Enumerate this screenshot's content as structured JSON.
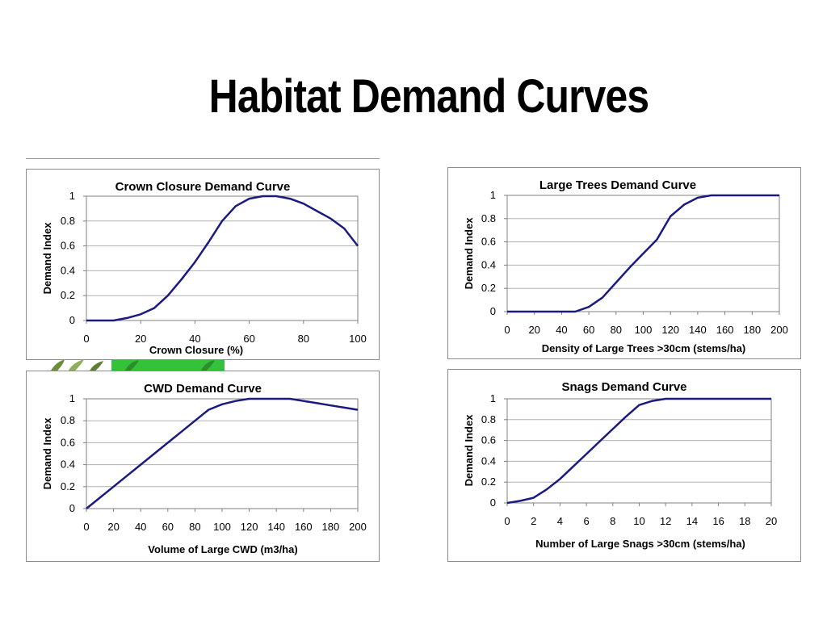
{
  "slide": {
    "title": "Habitat Demand Curves"
  },
  "colors": {
    "line": "#1a1a80",
    "grid": "#b0b0b0",
    "axis": "#808080",
    "border": "#8c8c8c"
  },
  "chart_data": [
    {
      "id": "crown",
      "type": "line",
      "title": "Crown Closure Demand Curve",
      "xlabel": "Crown Closure (%)",
      "ylabel": "Demand Index",
      "xlim": [
        0,
        100
      ],
      "ylim": [
        0,
        1
      ],
      "x_ticks": [
        "0",
        "20",
        "40",
        "60",
        "80",
        "100"
      ],
      "y_ticks": [
        "0",
        "0.2",
        "0.4",
        "0.6",
        "0.8",
        "1"
      ],
      "grid": true,
      "x": [
        0,
        5,
        10,
        15,
        20,
        25,
        30,
        35,
        40,
        45,
        50,
        55,
        60,
        65,
        70,
        75,
        80,
        85,
        90,
        95,
        100
      ],
      "y": [
        0,
        0,
        0,
        0.02,
        0.05,
        0.1,
        0.2,
        0.33,
        0.47,
        0.63,
        0.8,
        0.92,
        0.98,
        1.0,
        1.0,
        0.98,
        0.94,
        0.88,
        0.82,
        0.74,
        0.6
      ]
    },
    {
      "id": "trees",
      "type": "line",
      "title": "Large Trees Demand Curve",
      "xlabel": "Density of Large Trees >30cm (stems/ha)",
      "ylabel": "Demand Index",
      "xlim": [
        0,
        200
      ],
      "ylim": [
        0,
        1
      ],
      "x_ticks": [
        "0",
        "20",
        "40",
        "60",
        "80",
        "100",
        "120",
        "140",
        "160",
        "180",
        "200"
      ],
      "y_ticks": [
        "0",
        "0.2",
        "0.4",
        "0.6",
        "0.8",
        "1"
      ],
      "grid": true,
      "x": [
        0,
        10,
        20,
        30,
        40,
        50,
        60,
        70,
        80,
        90,
        100,
        110,
        120,
        130,
        140,
        150,
        160,
        170,
        180,
        190,
        200
      ],
      "y": [
        0,
        0,
        0,
        0,
        0,
        0,
        0.04,
        0.12,
        0.25,
        0.38,
        0.5,
        0.62,
        0.82,
        0.92,
        0.98,
        1.0,
        1.0,
        1.0,
        1.0,
        1.0,
        1.0
      ]
    },
    {
      "id": "cwd",
      "type": "line",
      "title": "CWD Demand Curve",
      "xlabel": "Volume of Large CWD (m3/ha)",
      "ylabel": "Demand Index",
      "xlim": [
        0,
        200
      ],
      "ylim": [
        0,
        1
      ],
      "x_ticks": [
        "0",
        "20",
        "40",
        "60",
        "80",
        "100",
        "120",
        "140",
        "160",
        "180",
        "200"
      ],
      "y_ticks": [
        "0",
        "0.2",
        "0.4",
        "0.6",
        "0.8",
        "1"
      ],
      "grid": true,
      "x": [
        0,
        10,
        20,
        30,
        40,
        50,
        60,
        70,
        80,
        90,
        100,
        110,
        120,
        130,
        140,
        150,
        160,
        170,
        180,
        190,
        200
      ],
      "y": [
        0,
        0.1,
        0.2,
        0.3,
        0.4,
        0.5,
        0.6,
        0.7,
        0.8,
        0.9,
        0.95,
        0.98,
        1.0,
        1.0,
        1.0,
        1.0,
        0.98,
        0.96,
        0.94,
        0.92,
        0.9
      ]
    },
    {
      "id": "snags",
      "type": "line",
      "title": "Snags Demand Curve",
      "xlabel": "Number of Large Snags >30cm (stems/ha)",
      "ylabel": "Demand Index",
      "xlim": [
        0,
        20
      ],
      "ylim": [
        0,
        1
      ],
      "x_ticks": [
        "0",
        "2",
        "4",
        "6",
        "8",
        "10",
        "12",
        "14",
        "16",
        "18",
        "20"
      ],
      "y_ticks": [
        "0",
        "0.2",
        "0.4",
        "0.6",
        "0.8",
        "1"
      ],
      "grid": true,
      "x": [
        0,
        1,
        2,
        3,
        4,
        5,
        6,
        7,
        8,
        9,
        10,
        11,
        12,
        13,
        14,
        15,
        16,
        17,
        18,
        19,
        20
      ],
      "y": [
        0,
        0.02,
        0.05,
        0.13,
        0.23,
        0.35,
        0.47,
        0.59,
        0.71,
        0.83,
        0.94,
        0.98,
        1.0,
        1.0,
        1.0,
        1.0,
        1.0,
        1.0,
        1.0,
        1.0,
        1.0
      ]
    }
  ]
}
